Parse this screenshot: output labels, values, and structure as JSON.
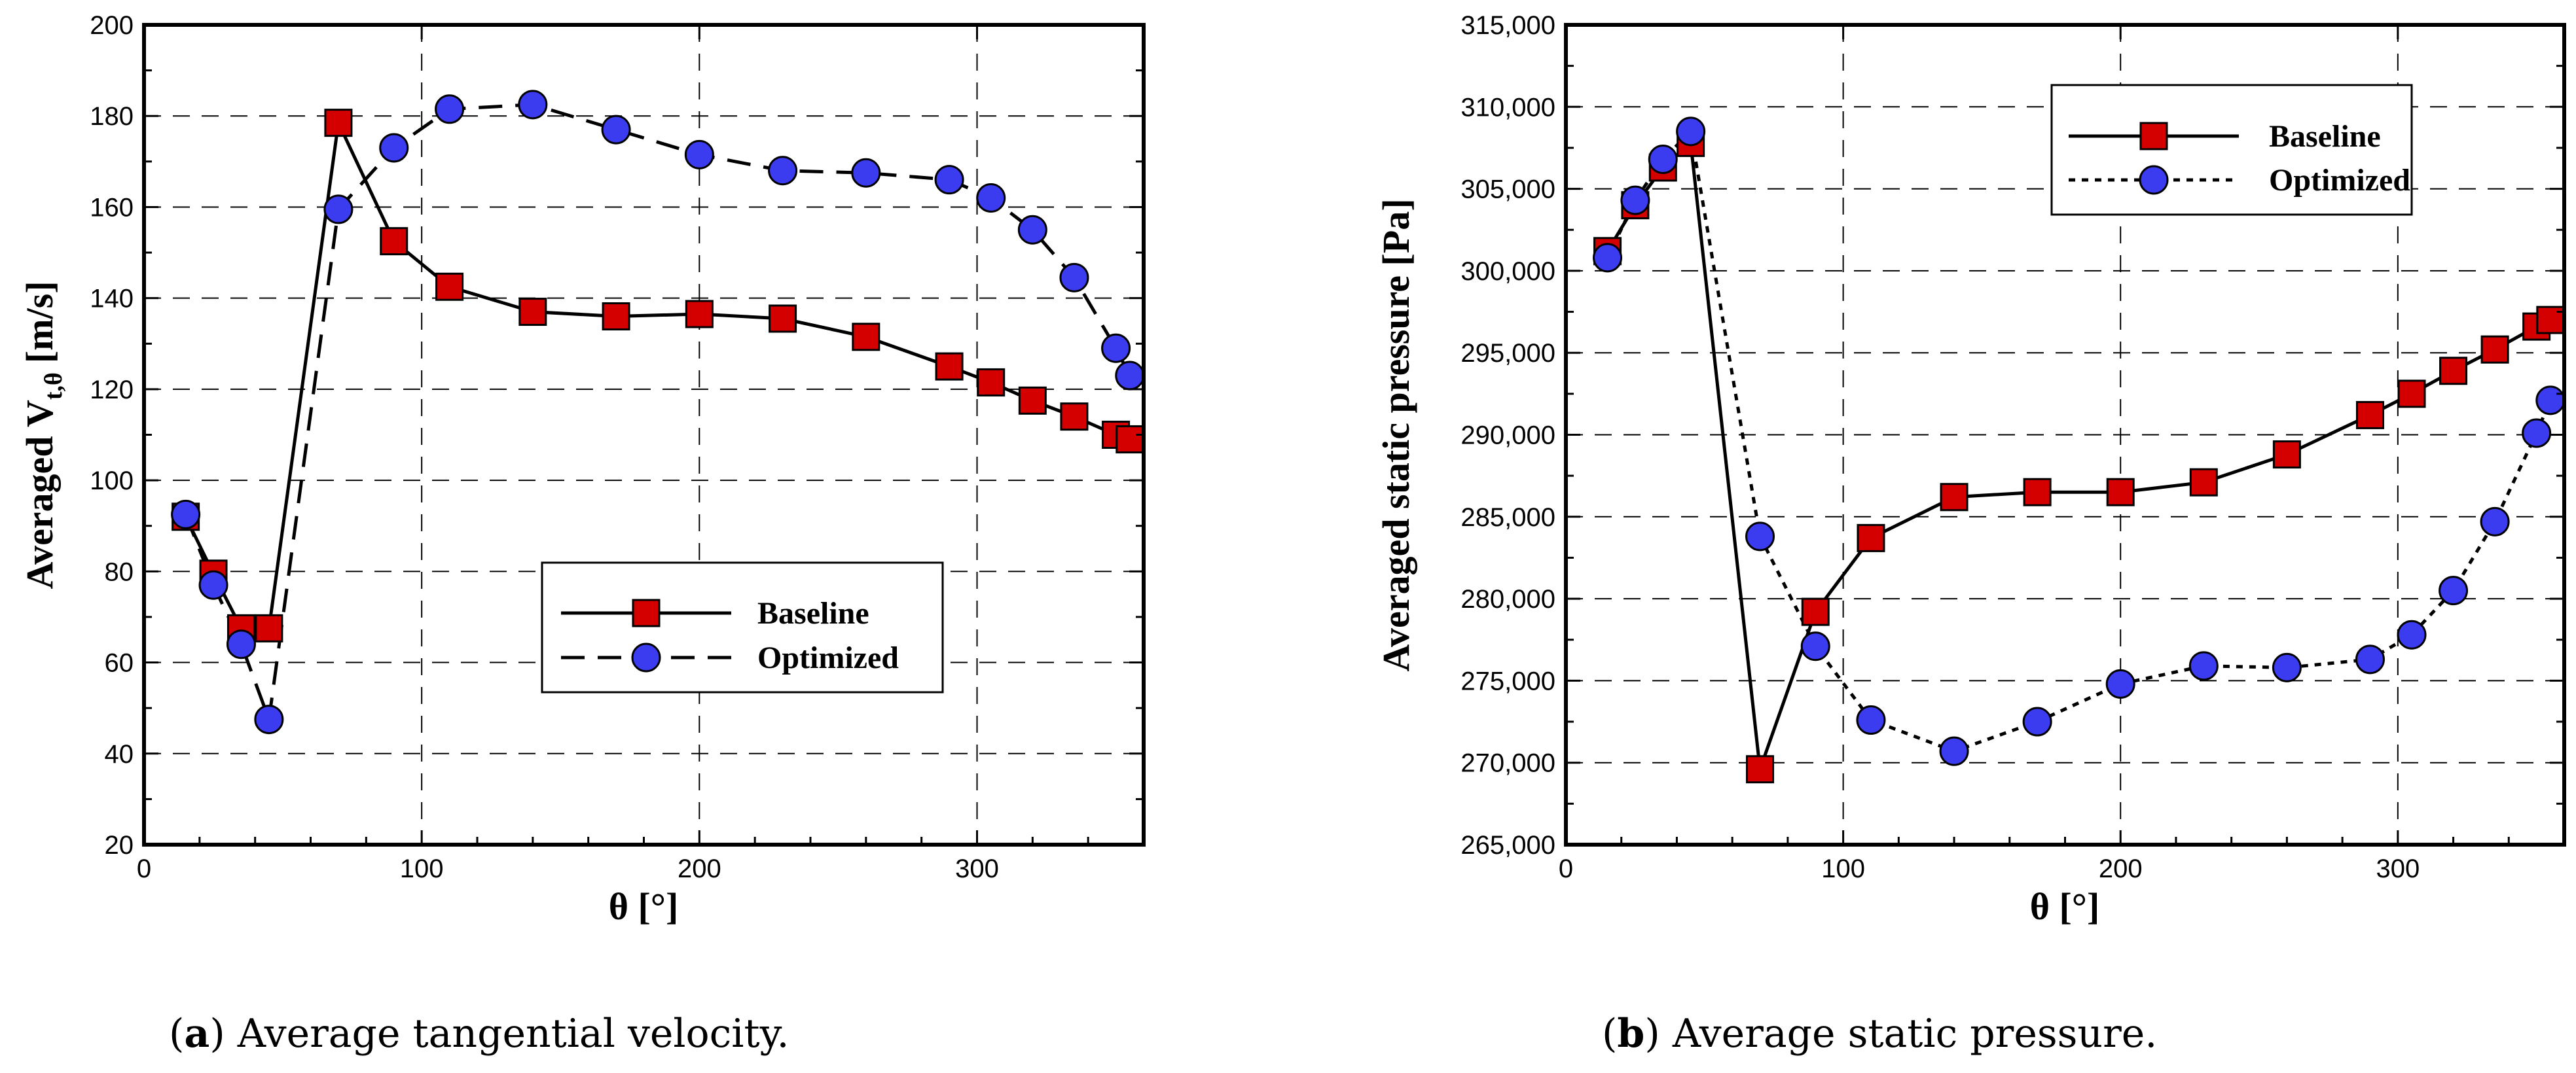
{
  "chart_data": [
    {
      "type": "line",
      "panel_label": "a",
      "caption": "Average tangential velocity.",
      "xlabel": "θ [°]",
      "ylabel_main": "Averaged V",
      "ylabel_sub": "t,θ",
      "ylabel_unit": "[m/s]",
      "xlim": [
        0,
        360
      ],
      "ylim": [
        20,
        200
      ],
      "xticks": [
        0,
        100,
        200,
        300
      ],
      "yticks": [
        20,
        40,
        60,
        80,
        100,
        120,
        140,
        160,
        180,
        200
      ],
      "ytick_labels": [
        "20",
        "40",
        "60",
        "80",
        "100",
        "120",
        "140",
        "160",
        "180",
        "200"
      ],
      "grid": true,
      "legend_position": "center-right",
      "series": [
        {
          "name": "Baseline",
          "style": "solid",
          "marker": "square",
          "color": "#d40000",
          "x": [
            15,
            25,
            35,
            45,
            70,
            90,
            110,
            140,
            170,
            200,
            230,
            260,
            290,
            305,
            320,
            335,
            350,
            355
          ],
          "y": [
            92,
            79.5,
            67.5,
            67.5,
            178.5,
            152.5,
            142.5,
            137,
            136,
            136.5,
            135.5,
            131.5,
            125,
            121.5,
            117.5,
            114,
            110,
            109
          ]
        },
        {
          "name": "Optimized",
          "style": "dashed",
          "marker": "circle",
          "color": "#3b3bf0",
          "x": [
            15,
            25,
            35,
            45,
            70,
            90,
            110,
            140,
            170,
            200,
            230,
            260,
            290,
            305,
            320,
            335,
            350,
            355
          ],
          "y": [
            92.5,
            77,
            64,
            47.5,
            159.5,
            173,
            181.5,
            182.5,
            177,
            171.5,
            168,
            167.5,
            166,
            162,
            155,
            144.5,
            129,
            123
          ]
        }
      ]
    },
    {
      "type": "line",
      "panel_label": "b",
      "caption": "Average static pressure.",
      "xlabel": "θ [°]",
      "ylabel_main": "Averaged static pressure [Pa]",
      "ylabel_sub": "",
      "ylabel_unit": "",
      "xlim": [
        0,
        360
      ],
      "ylim": [
        265000,
        315000
      ],
      "xticks": [
        0,
        100,
        200,
        300
      ],
      "yticks": [
        265000,
        270000,
        275000,
        280000,
        285000,
        290000,
        295000,
        300000,
        305000,
        310000,
        315000
      ],
      "ytick_labels": [
        "265,000",
        "270,000",
        "275,000",
        "280,000",
        "285,000",
        "290,000",
        "295,000",
        "300,000",
        "305,000",
        "310,000",
        "315,000"
      ],
      "grid": true,
      "legend_position": "top-right",
      "series": [
        {
          "name": "Baseline",
          "style": "solid",
          "marker": "square",
          "color": "#d40000",
          "x": [
            15,
            25,
            35,
            45,
            70,
            90,
            110,
            140,
            170,
            200,
            230,
            260,
            290,
            305,
            320,
            335,
            350,
            355
          ],
          "y": [
            301200,
            304000,
            306300,
            307800,
            269600,
            279200,
            283700,
            286200,
            286500,
            286500,
            287100,
            288800,
            291200,
            292500,
            293900,
            295200,
            296600,
            297000
          ]
        },
        {
          "name": "Optimized",
          "style": "dotted",
          "marker": "circle",
          "color": "#3b3bf0",
          "x": [
            15,
            25,
            35,
            45,
            70,
            90,
            110,
            140,
            170,
            200,
            230,
            260,
            290,
            305,
            320,
            335,
            350,
            355
          ],
          "y": [
            300800,
            304300,
            306800,
            308500,
            283800,
            277100,
            272600,
            270700,
            272500,
            274800,
            275900,
            275800,
            276300,
            277800,
            280500,
            284700,
            290100,
            292100
          ]
        }
      ]
    }
  ]
}
